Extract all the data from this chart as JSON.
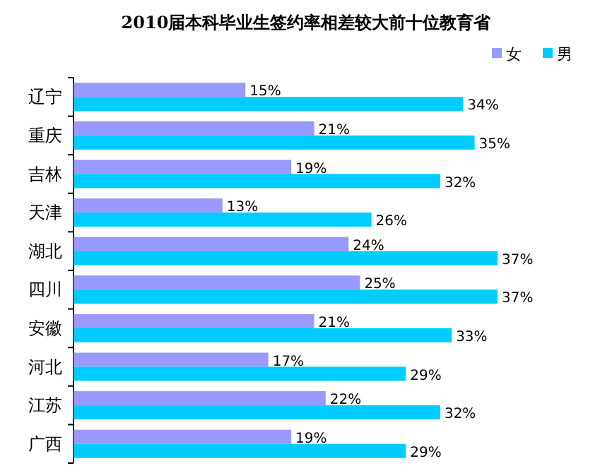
{
  "chart_data": {
    "type": "bar",
    "orientation": "horizontal",
    "title": "2010届本科毕业生签约率相差较大前十位教育省",
    "categories": [
      "辽宁",
      "重庆",
      "吉林",
      "天津",
      "湖北",
      "四川",
      "安徽",
      "河北",
      "江苏",
      "广西"
    ],
    "legend": "top right",
    "series": [
      {
        "name": "女",
        "color": "#9999ff",
        "values": [
          15,
          21,
          19,
          13,
          24,
          25,
          21,
          17,
          22,
          19
        ],
        "value_labels": [
          "15%",
          "21%",
          "19%",
          "13%",
          "24%",
          "25%",
          "21%",
          "17%",
          "22%",
          "19%"
        ]
      },
      {
        "name": "男",
        "color": "#00ccff",
        "values": [
          34,
          35,
          32,
          26,
          37,
          37,
          33,
          29,
          32,
          29
        ],
        "value_labels": [
          "34%",
          "35%",
          "32%",
          "26%",
          "37%",
          "37%",
          "33%",
          "29%",
          "32%",
          "29%"
        ]
      }
    ]
  }
}
